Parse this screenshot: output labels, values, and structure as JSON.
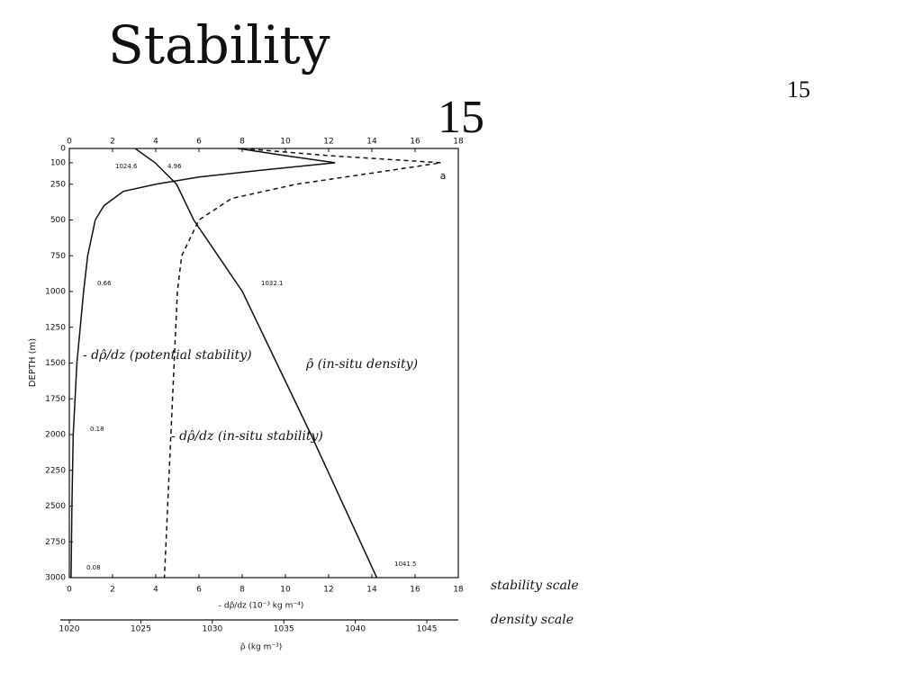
{
  "slide_title": "Stability",
  "page_number": "15",
  "corner_number": "15",
  "scale_notes": [
    "stability scale",
    "density scale"
  ],
  "chart_data": {
    "type": "line",
    "ylabel": "DEPTH (m)",
    "xlabel": "- dρ̂/dz (10⁻³ kg m⁻⁴)",
    "x2label": "ρ̂ (kg m⁻³)",
    "panel_label": "a",
    "ylim": [
      0,
      3000
    ],
    "yticks": [
      0,
      100,
      250,
      500,
      750,
      1000,
      1250,
      1500,
      1750,
      2000,
      2250,
      2500,
      2750,
      3000
    ],
    "xlim": [
      0,
      18
    ],
    "xticks": [
      0,
      2,
      4,
      6,
      8,
      10,
      12,
      14,
      16,
      18
    ],
    "x2lim": [
      1020,
      1047.2
    ],
    "x2ticks": [
      1020,
      1025,
      1030,
      1035,
      1040,
      1045
    ],
    "series": [
      {
        "name": "- dρ̂/dz (potential stability)",
        "color": "#111",
        "dash": false,
        "x": [
          7.8,
          10,
          12.3,
          9,
          6,
          4,
          2.5,
          1.6,
          1.2,
          0.85,
          0.66,
          0.35,
          0.18,
          0.12,
          0.08
        ],
        "y": [
          0,
          50,
          100,
          150,
          200,
          250,
          300,
          400,
          500,
          750,
          1000,
          1500,
          2000,
          2500,
          3000
        ]
      },
      {
        "name": "- dρ̂/dz (in-situ stability)",
        "color": "#111",
        "dash": true,
        "x": [
          8,
          12,
          17.2,
          15,
          10.5,
          7.5,
          6,
          5.2,
          5,
          4.85,
          4.7,
          4.55,
          4.4
        ],
        "y": [
          0,
          50,
          100,
          150,
          250,
          350,
          500,
          750,
          1000,
          1500,
          2000,
          2500,
          3000
        ]
      },
      {
        "name": "ρ̂ (in-situ density)",
        "color": "#111",
        "dash": false,
        "axis": "x2",
        "x": [
          1024.6,
          1026,
          1027.5,
          1028.7,
          1032.1,
          1034.5,
          1036.9,
          1039.2,
          1041.5
        ],
        "y": [
          0,
          100,
          250,
          500,
          1000,
          1500,
          2000,
          2500,
          3000
        ]
      }
    ],
    "annotations": [
      "1024.6",
      "4.96",
      "1032.1",
      "1041.5",
      "0.66",
      "0.18",
      "0.08"
    ]
  }
}
